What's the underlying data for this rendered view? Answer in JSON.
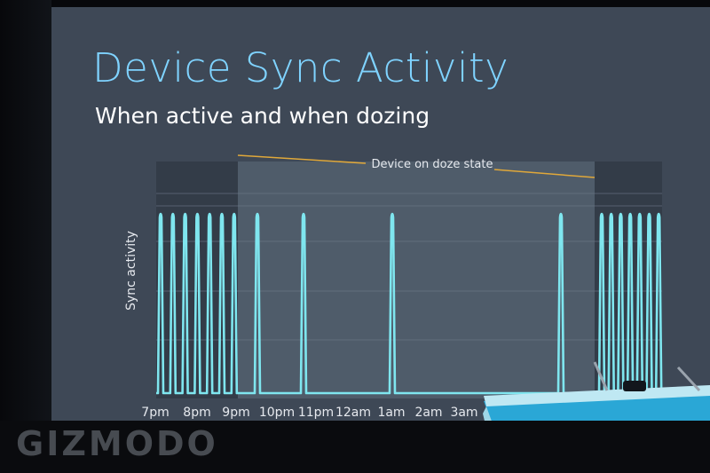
{
  "slide": {
    "title": "Device Sync Activity",
    "subtitle": "When active and when dozing",
    "watermark": "GIZMODO"
  },
  "chart_data": {
    "type": "line",
    "title": "Device Sync Activity",
    "subtitle": "When active and when dozing",
    "xlabel": "",
    "ylabel": "Sync activity",
    "categories": [
      "7pm",
      "8pm",
      "9pm",
      "10pm",
      "11pm",
      "12am",
      "1am",
      "2am",
      "3am"
    ],
    "annotation": "Device on doze state",
    "grid": true,
    "colors": {
      "line": "#7fe6ef",
      "doze_band": "#4f5c6a",
      "bracket": "#e0a83a"
    }
  }
}
